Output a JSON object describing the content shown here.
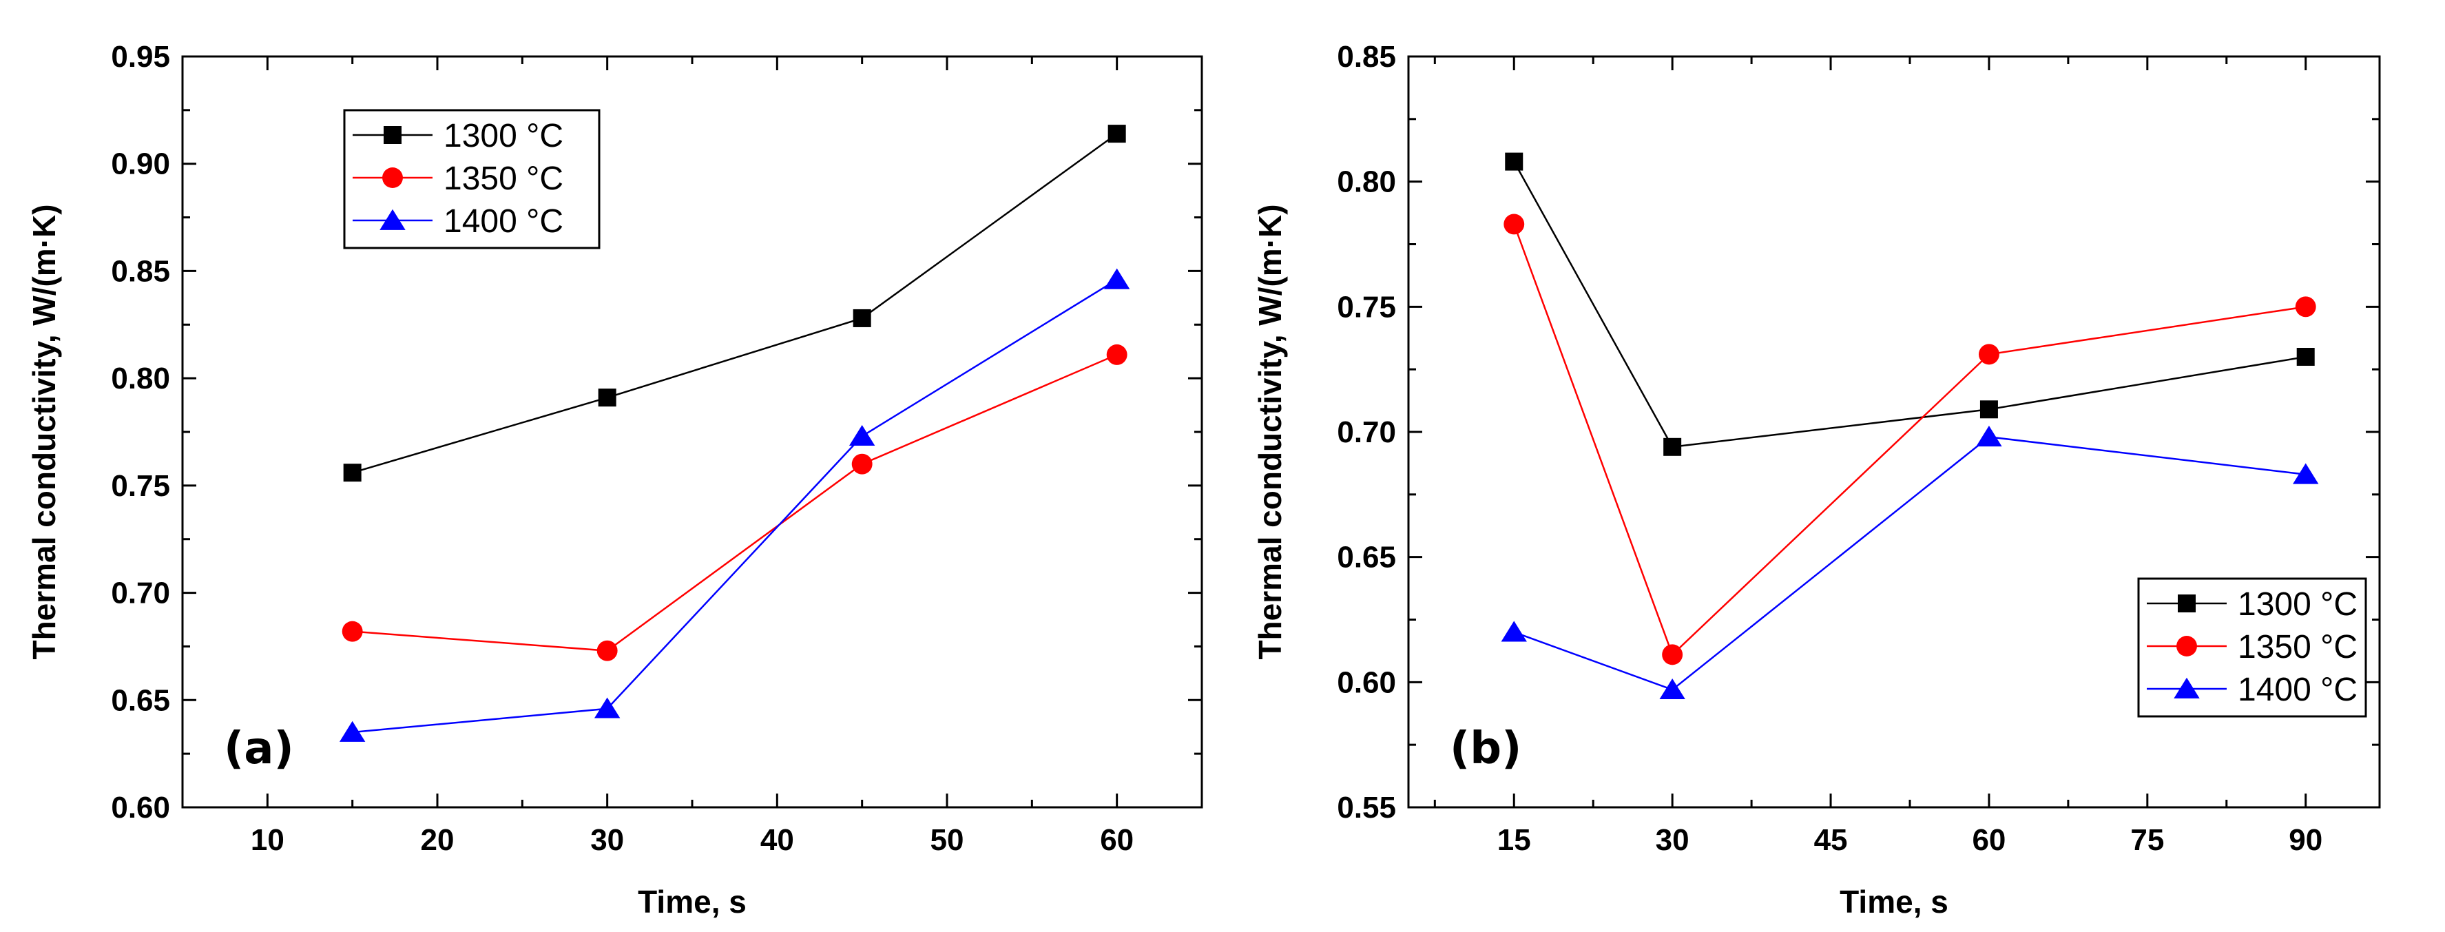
{
  "chart_data": [
    {
      "type": "line",
      "panel_label": "(a)",
      "xlabel": "Time, s",
      "ylabel": "Thermal conductivity, W/(m·K)",
      "xlim": [
        5,
        65
      ],
      "ylim": [
        0.6,
        0.95
      ],
      "xticks": [
        "10",
        "20",
        "30",
        "40",
        "50",
        "60"
      ],
      "yticks": [
        "0.60",
        "0.65",
        "0.70",
        "0.75",
        "0.80",
        "0.85",
        "0.90",
        "0.95"
      ],
      "legend_position": "top-left",
      "grid": false,
      "series": [
        {
          "name": "1300 °C",
          "color": "#000000",
          "marker": "square",
          "x": [
            15,
            30,
            45,
            60
          ],
          "y": [
            0.756,
            0.791,
            0.828,
            0.914
          ]
        },
        {
          "name": "1350 °C",
          "color": "#ff0000",
          "marker": "circle",
          "x": [
            15,
            30,
            45,
            60
          ],
          "y": [
            0.682,
            0.673,
            0.76,
            0.811
          ]
        },
        {
          "name": "1400 °C",
          "color": "#0000ff",
          "marker": "triangle",
          "x": [
            15,
            30,
            45,
            60
          ],
          "y": [
            0.635,
            0.646,
            0.773,
            0.846
          ]
        }
      ]
    },
    {
      "type": "line",
      "panel_label": "(b)",
      "xlabel": "Time, s",
      "ylabel": "Thermal conductivity, W/(m·K)",
      "xlim": [
        5,
        97
      ],
      "ylim": [
        0.55,
        0.85
      ],
      "xticks": [
        "15",
        "30",
        "45",
        "60",
        "75",
        "90"
      ],
      "yticks": [
        "0.55",
        "0.60",
        "0.65",
        "0.70",
        "0.75",
        "0.80",
        "0.85"
      ],
      "legend_position": "bottom-right",
      "grid": false,
      "series": [
        {
          "name": "1300 °C",
          "color": "#000000",
          "marker": "square",
          "x": [
            15,
            30,
            60,
            90
          ],
          "y": [
            0.808,
            0.694,
            0.709,
            0.73
          ]
        },
        {
          "name": "1350 °C",
          "color": "#ff0000",
          "marker": "circle",
          "x": [
            15,
            30,
            60,
            90
          ],
          "y": [
            0.783,
            0.611,
            0.731,
            0.75
          ]
        },
        {
          "name": "1400 °C",
          "color": "#0000ff",
          "marker": "triangle",
          "x": [
            15,
            30,
            60,
            90
          ],
          "y": [
            0.62,
            0.597,
            0.698,
            0.683
          ]
        }
      ]
    }
  ]
}
